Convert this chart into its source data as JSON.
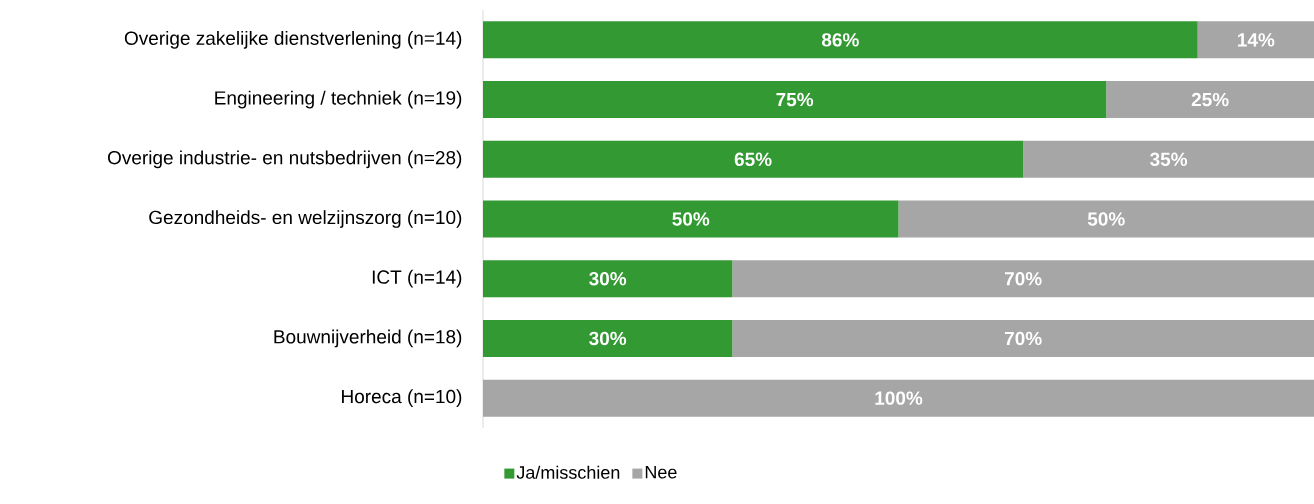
{
  "chart_data": {
    "type": "bar",
    "orientation": "horizontal",
    "stacked": true,
    "categories": [
      "Overige zakelijke dienstverlening (n=14)",
      "Engineering / techniek (n=19)",
      "Overige industrie- en nutsbedrijven (n=28)",
      "Gezondheids- en welzijnszorg (n=10)",
      "ICT (n=14)",
      "Bouwnijverheid (n=18)",
      "Horeca (n=10)"
    ],
    "series": [
      {
        "name": "Ja/misschien",
        "color": "#339933",
        "values": [
          86,
          75,
          65,
          50,
          30,
          30,
          0
        ],
        "value_labels": [
          "86%",
          "75%",
          "65%",
          "50%",
          "30%",
          "30%",
          null
        ]
      },
      {
        "name": "Nee",
        "color": "#a6a6a6",
        "values": [
          14,
          25,
          35,
          50,
          70,
          70,
          100
        ],
        "value_labels": [
          "14%",
          "25%",
          "35%",
          "50%",
          "70%",
          "70%",
          "100%"
        ]
      }
    ],
    "xlim": [
      0,
      100
    ],
    "tick_labels": "y",
    "legend": "bottom"
  }
}
